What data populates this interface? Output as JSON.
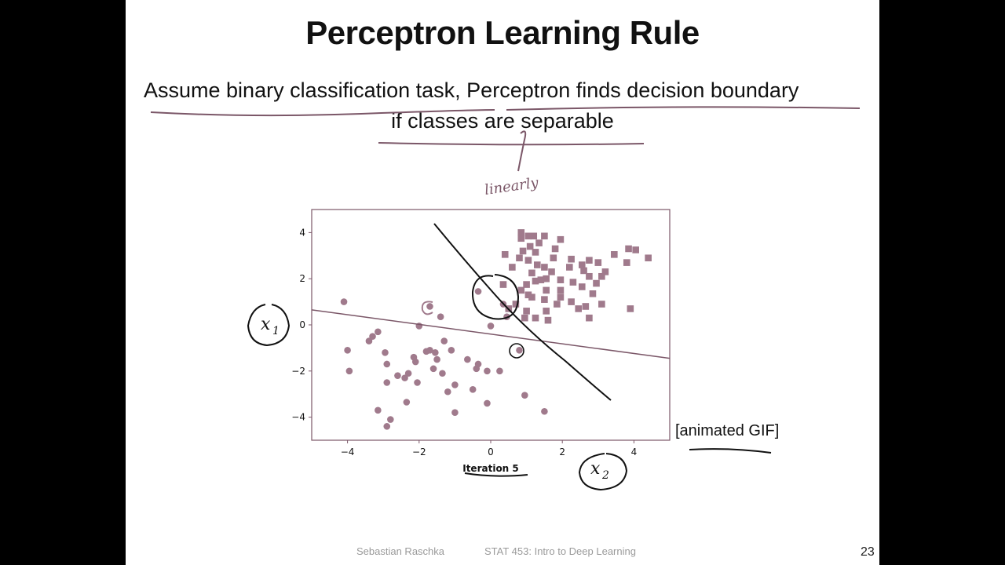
{
  "slide": {
    "title": "Perceptron Learning Rule",
    "line1_part1": "Assume binary classification task,",
    "line1_part2": "Perceptron finds decision boundary",
    "line2": "if classes are separable",
    "animated_label": "[animated GIF]",
    "footer_author": "Sebastian Raschka",
    "footer_course": "STAT 453: Intro to Deep Learning",
    "page_number": "23"
  },
  "annotations": {
    "linearly_note": "linearly",
    "x1_label": "x",
    "x1_sub": "1",
    "x2_label": "x",
    "x2_sub": "2"
  },
  "colors": {
    "marker": "#a07a8c",
    "axes": "#7b5768",
    "ink": "#111111"
  },
  "chart_data": {
    "type": "scatter",
    "xlabel": "Iteration 5",
    "ylabel": "",
    "xlim": [
      -5,
      5
    ],
    "ylim": [
      -5,
      5
    ],
    "xticks": [
      -4,
      -2,
      0,
      2,
      4
    ],
    "yticks": [
      -4,
      -2,
      0,
      2,
      4
    ],
    "grid": false,
    "series": [
      {
        "marker": "circle",
        "points": [
          [
            -4.1,
            1.0
          ],
          [
            -4.0,
            -1.1
          ],
          [
            -3.95,
            -2.0
          ],
          [
            -3.4,
            -0.7
          ],
          [
            -3.3,
            -0.5
          ],
          [
            -3.15,
            -0.3
          ],
          [
            -3.15,
            -3.7
          ],
          [
            -2.95,
            -1.2
          ],
          [
            -2.9,
            -1.7
          ],
          [
            -2.9,
            -2.5
          ],
          [
            -2.9,
            -4.4
          ],
          [
            -2.8,
            -4.1
          ],
          [
            -2.6,
            -2.2
          ],
          [
            -2.4,
            -2.3
          ],
          [
            -2.35,
            -3.35
          ],
          [
            -2.3,
            -2.1
          ],
          [
            -2.15,
            -1.4
          ],
          [
            -2.1,
            -1.6
          ],
          [
            -2.05,
            -2.5
          ],
          [
            -2.0,
            -0.05
          ],
          [
            -1.8,
            -1.15
          ],
          [
            -1.7,
            -1.1
          ],
          [
            -1.7,
            0.8
          ],
          [
            -1.6,
            -1.9
          ],
          [
            -1.55,
            -1.2
          ],
          [
            -1.5,
            -1.5
          ],
          [
            -1.4,
            0.35
          ],
          [
            -1.35,
            -2.1
          ],
          [
            -1.3,
            -0.7
          ],
          [
            -1.2,
            -2.9
          ],
          [
            -1.1,
            -1.1
          ],
          [
            -1.0,
            -2.6
          ],
          [
            -1.0,
            -3.8
          ],
          [
            -0.65,
            -1.5
          ],
          [
            -0.5,
            -2.8
          ],
          [
            -0.4,
            -1.9
          ],
          [
            -0.35,
            -1.7
          ],
          [
            -0.35,
            1.45
          ],
          [
            -0.1,
            -2.0
          ],
          [
            -0.1,
            -3.4
          ],
          [
            0.0,
            -0.05
          ],
          [
            0.25,
            -2.0
          ],
          [
            0.35,
            0.9
          ],
          [
            0.45,
            0.35
          ],
          [
            0.8,
            -1.1
          ],
          [
            0.95,
            -3.05
          ],
          [
            1.5,
            -3.75
          ]
        ]
      },
      {
        "marker": "square",
        "points": [
          [
            0.85,
            4.0
          ],
          [
            0.85,
            3.75
          ],
          [
            1.05,
            3.85
          ],
          [
            1.2,
            3.85
          ],
          [
            1.5,
            3.85
          ],
          [
            1.95,
            3.7
          ],
          [
            1.35,
            3.55
          ],
          [
            1.1,
            3.4
          ],
          [
            1.8,
            3.3
          ],
          [
            0.8,
            2.9
          ],
          [
            1.05,
            2.8
          ],
          [
            1.3,
            2.6
          ],
          [
            1.5,
            2.5
          ],
          [
            1.75,
            2.9
          ],
          [
            2.25,
            2.85
          ],
          [
            2.6,
            2.35
          ],
          [
            2.75,
            2.8
          ],
          [
            3.0,
            2.7
          ],
          [
            3.2,
            2.3
          ],
          [
            3.1,
            2.1
          ],
          [
            2.95,
            1.8
          ],
          [
            2.85,
            1.35
          ],
          [
            2.75,
            2.1
          ],
          [
            3.1,
            0.9
          ],
          [
            3.85,
            3.3
          ],
          [
            4.05,
            3.25
          ],
          [
            4.4,
            2.9
          ],
          [
            3.8,
            2.7
          ],
          [
            0.35,
            1.75
          ],
          [
            1.0,
            1.75
          ],
          [
            1.25,
            1.9
          ],
          [
            1.4,
            1.95
          ],
          [
            1.55,
            2.0
          ],
          [
            1.55,
            1.5
          ],
          [
            1.95,
            1.5
          ],
          [
            0.6,
            2.5
          ],
          [
            0.85,
            1.5
          ],
          [
            1.15,
            1.2
          ],
          [
            1.5,
            1.1
          ],
          [
            1.95,
            1.2
          ],
          [
            2.25,
            1.0
          ],
          [
            1.85,
            0.9
          ],
          [
            1.55,
            0.6
          ],
          [
            1.25,
            0.3
          ],
          [
            2.45,
            0.7
          ],
          [
            2.65,
            0.8
          ],
          [
            2.55,
            1.65
          ],
          [
            2.3,
            1.85
          ],
          [
            3.45,
            3.05
          ],
          [
            2.75,
            0.3
          ],
          [
            1.6,
            0.2
          ],
          [
            0.7,
            0.9
          ],
          [
            3.9,
            0.7
          ],
          [
            1.95,
            1.95
          ],
          [
            2.55,
            2.6
          ],
          [
            0.5,
            0.7
          ],
          [
            1.05,
            1.3
          ],
          [
            1.0,
            0.6
          ],
          [
            2.2,
            2.5
          ],
          [
            0.95,
            0.3
          ],
          [
            1.15,
            2.25
          ],
          [
            1.7,
            2.3
          ],
          [
            0.4,
            3.05
          ],
          [
            0.9,
            3.2
          ],
          [
            1.25,
            3.15
          ]
        ]
      }
    ],
    "decision_boundary": [
      [
        -5.0,
        0.65
      ],
      [
        5.0,
        -1.45
      ]
    ]
  }
}
